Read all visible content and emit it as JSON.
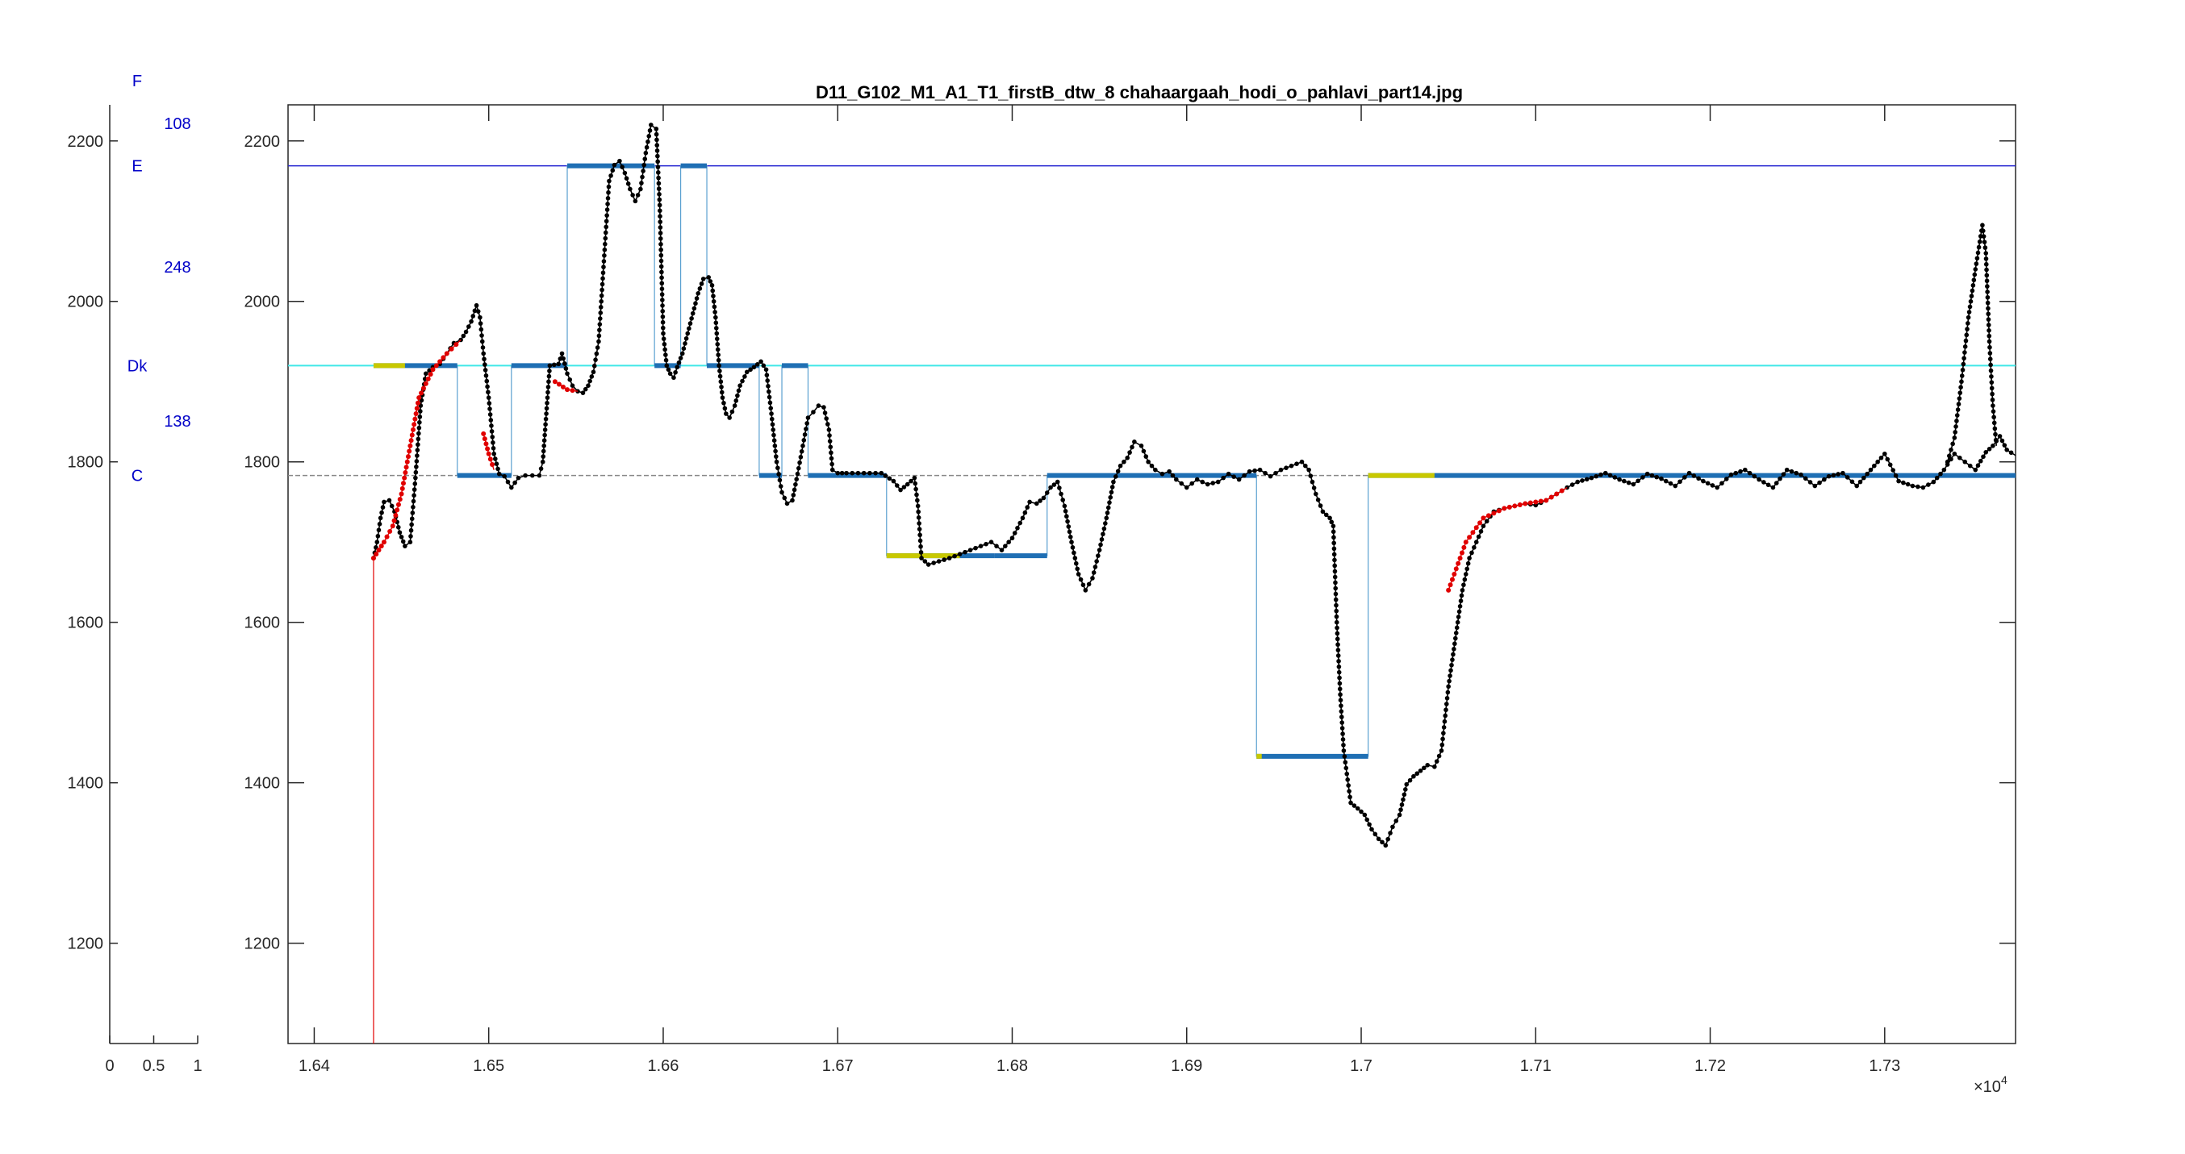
{
  "chart_data": [
    {
      "type": "bar",
      "role": "side-panel",
      "xlim": [
        0,
        1
      ],
      "ylim": [
        1075,
        2245
      ],
      "x_ticks": [
        "0",
        "0.5",
        "1"
      ],
      "y_ticks": [
        "1200",
        "1400",
        "1600",
        "1800",
        "2000",
        "2200"
      ],
      "note_labels": [
        {
          "text": "F",
          "y": 2275
        },
        {
          "text": "E",
          "y": 2169
        },
        {
          "text": "Dk",
          "y": 1920
        },
        {
          "text": "C",
          "y": 1783
        }
      ],
      "value_labels": [
        {
          "text": "108",
          "y": 2222
        },
        {
          "text": "248",
          "y": 2043
        },
        {
          "text": "138",
          "y": 1851
        }
      ]
    },
    {
      "type": "line",
      "title": "D11_G102_M1_A1_T1_firstB_dtw_8 chahaargaah_hodi_o_pahlavi_part14.jpg",
      "xlim": [
        16385,
        17375
      ],
      "ylim": [
        1075,
        2245
      ],
      "x_ticks": [
        "1.64",
        "1.65",
        "1.66",
        "1.67",
        "1.68",
        "1.69",
        "1.7",
        "1.71",
        "1.72",
        "1.73"
      ],
      "x_tick_values": [
        16400,
        16500,
        16600,
        16700,
        16800,
        16900,
        17000,
        17100,
        17200,
        17300
      ],
      "x_exponent": "×10",
      "x_exponent_power": "4",
      "y_ticks": [
        "1200",
        "1400",
        "1600",
        "1800",
        "2000",
        "2200"
      ],
      "colors": {
        "pitch": "#000000",
        "transition": "#e00000",
        "segment": "#1f6fb4",
        "segment_start": "#c8c800",
        "step_line": "#5aa0d0",
        "ref_E": "#2020d0",
        "ref_Dk": "#40e8e8",
        "ref_C": "#888888",
        "axis": "#262626"
      },
      "reference_lines": [
        {
          "name": "E",
          "y": 2169
        },
        {
          "name": "Dk",
          "y": 1920
        },
        {
          "name": "C",
          "y": 1783
        }
      ],
      "segments": [
        {
          "x": [
            16434,
            16482
          ],
          "y": 1920
        },
        {
          "x": [
            16482,
            16513
          ],
          "y": 1783
        },
        {
          "x": [
            16513,
            16545
          ],
          "y": 1920
        },
        {
          "x": [
            16545,
            16595
          ],
          "y": 2169
        },
        {
          "x": [
            16595,
            16610
          ],
          "y": 1920
        },
        {
          "x": [
            16610,
            16625
          ],
          "y": 2169
        },
        {
          "x": [
            16625,
            16655
          ],
          "y": 1920
        },
        {
          "x": [
            16655,
            16668
          ],
          "y": 1783
        },
        {
          "x": [
            16668,
            16683
          ],
          "y": 1920
        },
        {
          "x": [
            16683,
            16728
          ],
          "y": 1783
        },
        {
          "x": [
            16728,
            16790
          ],
          "y": 1683
        },
        {
          "x": [
            16790,
            16820
          ],
          "y": 1683
        },
        {
          "x": [
            16820,
            16940
          ],
          "y": 1783
        },
        {
          "x": [
            16940,
            17004
          ],
          "y": 1433
        },
        {
          "x": [
            17004,
            17375
          ],
          "y": 1783
        }
      ],
      "pitch_series": [
        {
          "x": [
            16434,
            16436,
            16438,
            16440,
            16443,
            16446,
            16449,
            16452,
            16455
          ],
          "y": [
            1680,
            1700,
            1730,
            1750,
            1752,
            1738,
            1712,
            1695,
            1700
          ]
        },
        {
          "x": [
            16455,
            16458,
            16461,
            16464,
            16468,
            16472,
            16476,
            16480,
            16484
          ],
          "y": [
            1700,
            1780,
            1870,
            1910,
            1918,
            1922,
            1935,
            1948,
            1952
          ]
        },
        {
          "x": [
            16484,
            16487,
            16490,
            16493,
            16495,
            16497
          ],
          "y": [
            1952,
            1962,
            1975,
            1995,
            1980,
            1935
          ]
        },
        {
          "x": [
            16497,
            16500,
            16503,
            16506,
            16509
          ],
          "y": [
            1935,
            1880,
            1810,
            1785,
            1782
          ]
        },
        {
          "x": [
            16509,
            16513,
            16517,
            16521,
            16525,
            16529,
            16531,
            16533,
            16535
          ],
          "y": [
            1782,
            1768,
            1780,
            1783,
            1783,
            1783,
            1800,
            1860,
            1920
          ]
        },
        {
          "x": [
            16535,
            16540,
            16542,
            16545,
            16548,
            16551
          ],
          "y": [
            1920,
            1922,
            1935,
            1910,
            1895,
            1888
          ]
        },
        {
          "x": [
            16551,
            16554,
            16557,
            16560
          ],
          "y": [
            1888,
            1886,
            1895,
            1912
          ]
        },
        {
          "x": [
            16560,
            16563,
            16566,
            16569,
            16572,
            16575,
            16578,
            16581,
            16584,
            16587,
            16590,
            16593,
            16596
          ],
          "y": [
            1912,
            1950,
            2050,
            2150,
            2170,
            2175,
            2160,
            2140,
            2125,
            2140,
            2185,
            2220,
            2215
          ]
        },
        {
          "x": [
            16596,
            16598,
            16600,
            16602,
            16604,
            16606,
            16608,
            16611,
            16614,
            16617,
            16620,
            16623,
            16626
          ],
          "y": [
            2215,
            2120,
            1960,
            1920,
            1910,
            1905,
            1918,
            1935,
            1960,
            1985,
            2010,
            2028,
            2030
          ]
        },
        {
          "x": [
            16626,
            16628,
            16630,
            16632,
            16634,
            16636,
            16638,
            16641,
            16644,
            16648,
            16652,
            16656
          ],
          "y": [
            2030,
            2020,
            1980,
            1920,
            1880,
            1860,
            1855,
            1870,
            1895,
            1912,
            1918,
            1925
          ]
        },
        {
          "x": [
            16656,
            16659,
            16662,
            16665,
            16668,
            16671,
            16674,
            16677,
            16680,
            16683,
            16686,
            16689,
            16692
          ],
          "y": [
            1925,
            1915,
            1860,
            1800,
            1762,
            1748,
            1752,
            1785,
            1820,
            1855,
            1862,
            1870,
            1868
          ]
        },
        {
          "x": [
            16692,
            16695,
            16697,
            16700,
            16705,
            16715,
            16725,
            16732,
            16736,
            16740,
            16744
          ],
          "y": [
            1868,
            1840,
            1790,
            1786,
            1786,
            1786,
            1786,
            1776,
            1765,
            1772,
            1780
          ]
        },
        {
          "x": [
            16744,
            16746,
            16748,
            16752,
            16758,
            16764,
            16770,
            16776,
            16782,
            16788,
            16794,
            16800,
            16806
          ],
          "y": [
            1780,
            1745,
            1680,
            1672,
            1676,
            1680,
            1685,
            1690,
            1695,
            1700,
            1690,
            1705,
            1730
          ]
        },
        {
          "x": [
            16806,
            16810,
            16814,
            16818,
            16822,
            16826,
            16830,
            16834,
            16838,
            16842,
            16846,
            16850,
            16854
          ],
          "y": [
            1730,
            1750,
            1748,
            1755,
            1768,
            1775,
            1745,
            1700,
            1660,
            1640,
            1655,
            1690,
            1730
          ]
        },
        {
          "x": [
            16854,
            16858,
            16862,
            16866,
            16870,
            16874,
            16878,
            16882,
            16886,
            16890,
            16894
          ],
          "y": [
            1730,
            1775,
            1795,
            1805,
            1825,
            1820,
            1800,
            1790,
            1785,
            1788,
            1778
          ]
        },
        {
          "x": [
            16894,
            16900,
            16906,
            16912,
            16918,
            16924,
            16930,
            16936,
            16942,
            16948,
            16954,
            16960,
            16966
          ],
          "y": [
            1778,
            1768,
            1778,
            1772,
            1775,
            1785,
            1778,
            1788,
            1790,
            1782,
            1790,
            1795,
            1800
          ]
        },
        {
          "x": [
            16966,
            16970,
            16974,
            16978,
            16982,
            16984,
            16986,
            16988,
            16990
          ],
          "y": [
            1800,
            1790,
            1760,
            1738,
            1730,
            1720,
            1600,
            1510,
            1440
          ]
        },
        {
          "x": [
            16990,
            16994,
            16998,
            17002,
            17006,
            17010,
            17014,
            17018,
            17022,
            17026,
            17030,
            17034,
            17038,
            17042
          ],
          "y": [
            1440,
            1375,
            1368,
            1360,
            1342,
            1330,
            1322,
            1345,
            1360,
            1398,
            1408,
            1415,
            1422,
            1420
          ]
        },
        {
          "x": [
            17042,
            17046,
            17050,
            17054,
            17058,
            17062,
            17066,
            17070
          ],
          "y": [
            1420,
            1440,
            1520,
            1580,
            1640,
            1680,
            1700,
            1720
          ]
        },
        {
          "x": [
            17070,
            17076,
            17082,
            17088,
            17094,
            17100,
            17106,
            17112,
            17118,
            17124
          ],
          "y": [
            1720,
            1738,
            1742,
            1745,
            1748,
            1746,
            1752,
            1760,
            1768,
            1775
          ]
        },
        {
          "x": [
            17124,
            17132,
            17140,
            17148,
            17156,
            17164,
            17172,
            17180,
            17188,
            17196,
            17204,
            17212,
            17220,
            17228,
            17236,
            17244,
            17252,
            17260,
            17268,
            17276,
            17284,
            17292,
            17300,
            17308,
            17316
          ],
          "y": [
            1775,
            1780,
            1786,
            1778,
            1772,
            1785,
            1779,
            1770,
            1786,
            1776,
            1768,
            1784,
            1790,
            1778,
            1768,
            1790,
            1784,
            1770,
            1782,
            1786,
            1770,
            1790,
            1810,
            1776,
            1770
          ]
        },
        {
          "x": [
            17316,
            17322,
            17328,
            17334,
            17340,
            17346,
            17352,
            17358,
            17362,
            17366,
            17370,
            17375
          ],
          "y": [
            1770,
            1768,
            1775,
            1790,
            1810,
            1800,
            1790,
            1812,
            1820,
            1832,
            1815,
            1808
          ]
        },
        {
          "x": [
            17336,
            17340,
            17344,
            17348,
            17352,
            17356,
            17358,
            17360,
            17362,
            17364
          ],
          "y": [
            1800,
            1830,
            1900,
            1980,
            2040,
            2095,
            2060,
            1950,
            1870,
            1820
          ]
        }
      ],
      "transition_series": [
        {
          "x": [
            16434,
            16437,
            16440,
            16445,
            16450,
            16455,
            16460,
            16468,
            16476,
            16484
          ],
          "y": [
            1680,
            1690,
            1700,
            1720,
            1760,
            1820,
            1880,
            1915,
            1935,
            1952
          ]
        },
        {
          "x": [
            16497,
            16500,
            16503
          ],
          "y": [
            1835,
            1810,
            1790
          ]
        },
        {
          "x": [
            16538,
            16545,
            16551
          ],
          "y": [
            1900,
            1890,
            1888
          ]
        },
        {
          "x": [
            17050,
            17060,
            17070,
            17082,
            17094,
            17106,
            17118
          ],
          "y": [
            1640,
            1700,
            1730,
            1742,
            1748,
            1752,
            1768
          ]
        }
      ]
    }
  ]
}
